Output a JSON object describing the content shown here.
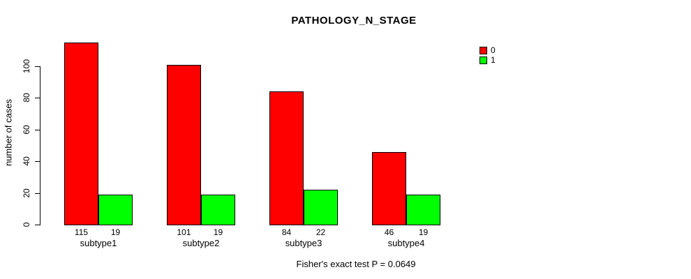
{
  "chart_data": {
    "type": "bar",
    "title": "PATHOLOGY_N_STAGE",
    "ylabel": "number of cases",
    "xlabel": "",
    "categories": [
      "subtype1",
      "subtype2",
      "subtype3",
      "subtype4"
    ],
    "series": [
      {
        "name": "0",
        "color": "#ff0000",
        "values": [
          115,
          101,
          84,
          46
        ]
      },
      {
        "name": "1",
        "color": "#00ff00",
        "values": [
          19,
          19,
          22,
          19
        ]
      }
    ],
    "yticks": [
      0,
      20,
      40,
      60,
      80,
      100
    ],
    "ylim": [
      0,
      115
    ],
    "grid": false,
    "legend_position": "right",
    "bar_value_labels": true,
    "caption": "Fisher's exact test P = 0.0649"
  },
  "colors": {
    "series0": "#ff0000",
    "series1": "#00ff00",
    "axis": "#000000",
    "background": "#ffffff"
  }
}
